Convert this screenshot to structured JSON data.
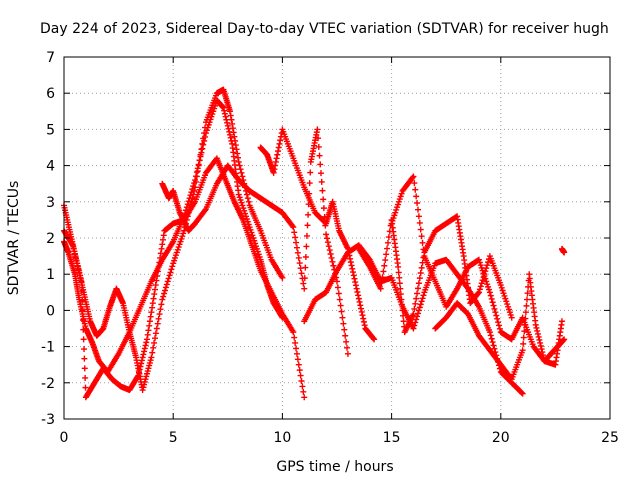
{
  "chart_data": {
    "type": "scatter",
    "title": "Day 224 of 2023, Sidereal Day-to-day VTEC variation (SDTVAR) for receiver hugh",
    "xlabel": "GPS time / hours",
    "ylabel": "SDTVAR / TECUs",
    "xlim": [
      0,
      25
    ],
    "ylim": [
      -3,
      7
    ],
    "xticks": [
      "0",
      "5",
      "10",
      "15",
      "20",
      "25"
    ],
    "yticks": [
      "-3",
      "-2",
      "-1",
      "0",
      "1",
      "2",
      "3",
      "4",
      "5",
      "6",
      "7"
    ],
    "grid": true,
    "marker": "+",
    "series": [
      {
        "name": "track-1",
        "color": "#ff0000",
        "x": [
          0.0,
          0.2,
          0.5,
          0.7,
          1.0,
          1.3,
          1.6,
          2.0,
          2.5,
          3.0,
          3.5,
          4.0,
          4.5,
          5.0,
          5.5,
          6.0,
          6.5,
          7.0,
          7.3,
          7.7,
          8.0,
          8.5,
          9.0,
          9.3,
          9.6,
          10.0
        ],
        "y": [
          1.9,
          1.6,
          1.0,
          0.3,
          -0.5,
          -0.9,
          -1.4,
          -1.7,
          -1.2,
          -0.6,
          0.1,
          0.8,
          1.4,
          1.9,
          2.6,
          3.6,
          4.9,
          5.8,
          5.6,
          4.6,
          3.2,
          2.3,
          1.4,
          0.7,
          0.2,
          -0.2
        ]
      },
      {
        "name": "track-2",
        "color": "#ff0000",
        "x": [
          0.0,
          0.3,
          0.6,
          0.9,
          1.2,
          1.5,
          1.8,
          2.1,
          2.4,
          2.7,
          3.0,
          3.3,
          3.6,
          4.0,
          4.5,
          5.0,
          5.5,
          6.0,
          6.5,
          7.0,
          7.3,
          7.6,
          8.0,
          8.5,
          9.0,
          9.5,
          10.0
        ],
        "y": [
          2.9,
          2.1,
          1.3,
          0.5,
          -0.3,
          -0.7,
          -0.5,
          0.1,
          0.6,
          0.2,
          -0.6,
          -1.3,
          -2.2,
          -1.3,
          0.3,
          1.3,
          2.2,
          3.4,
          5.2,
          6.0,
          6.1,
          5.5,
          4.1,
          2.9,
          2.2,
          1.4,
          0.9
        ]
      },
      {
        "name": "track-3",
        "color": "#ff0000",
        "x": [
          0.0,
          0.4,
          0.8,
          1.0,
          1.4,
          1.8,
          2.2,
          2.6,
          3.0,
          3.4,
          3.8,
          4.2,
          4.6,
          5.0,
          5.5,
          6.0,
          6.5,
          7.0,
          7.4,
          7.8,
          8.2,
          8.6,
          9.0,
          9.5,
          10.0,
          10.5,
          11.0
        ],
        "y": [
          2.2,
          1.8,
          0.8,
          -2.4,
          -2.0,
          -1.6,
          -1.9,
          -2.1,
          -2.2,
          -1.8,
          -0.8,
          0.7,
          2.2,
          2.4,
          2.5,
          3.0,
          3.8,
          4.2,
          3.6,
          3.0,
          2.5,
          1.8,
          1.1,
          0.5,
          -0.1,
          -0.6,
          -2.4
        ]
      },
      {
        "name": "track-4",
        "color": "#ff0000",
        "x": [
          4.5,
          4.8,
          5.0,
          5.3,
          5.7,
          6.0,
          6.5,
          7.0,
          7.5,
          8.0,
          8.5,
          9.0,
          9.5,
          10.0,
          10.5,
          11.0,
          11.3,
          11.6,
          12.0,
          12.5,
          13.0
        ],
        "y": [
          3.5,
          3.1,
          3.3,
          2.7,
          2.2,
          2.4,
          2.8,
          3.5,
          4.0,
          3.6,
          3.3,
          3.1,
          2.9,
          2.7,
          2.3,
          0.6,
          4.1,
          5.0,
          2.1,
          0.8,
          -1.2
        ]
      },
      {
        "name": "track-5",
        "color": "#ff0000",
        "x": [
          9.0,
          9.3,
          9.6,
          10.0,
          10.5,
          11.0,
          11.5,
          12.0,
          12.3,
          12.6,
          13.0,
          13.4,
          13.8,
          14.2
        ],
        "y": [
          4.5,
          4.3,
          3.8,
          5.0,
          4.2,
          3.4,
          2.7,
          2.4,
          3.0,
          2.2,
          1.7,
          0.6,
          -0.5,
          -0.8
        ]
      },
      {
        "name": "track-6",
        "color": "#ff0000",
        "x": [
          11.0,
          11.5,
          12.0,
          12.5,
          13.0,
          13.5,
          14.0,
          14.5,
          15.0,
          15.5,
          16.0,
          16.5,
          17.0,
          17.5,
          18.0,
          18.5,
          19.0,
          19.5,
          20.0,
          20.5,
          21.0
        ],
        "y": [
          -0.3,
          0.3,
          0.5,
          1.1,
          1.6,
          1.8,
          1.4,
          0.8,
          0.9,
          0.1,
          -0.5,
          0.5,
          1.3,
          1.4,
          1.0,
          0.6,
          0.1,
          -0.6,
          -1.7,
          -2.0,
          -2.3
        ]
      },
      {
        "name": "track-7",
        "color": "#ff0000",
        "x": [
          13.5,
          14.0,
          14.5,
          15.0,
          15.3,
          15.6,
          16.0,
          16.5,
          17.0,
          17.5,
          18.0,
          18.3,
          18.6,
          19.0,
          19.5,
          20.0,
          20.5
        ],
        "y": [
          1.7,
          1.2,
          0.6,
          2.5,
          1.2,
          -0.6,
          -0.1,
          1.6,
          2.2,
          2.4,
          2.6,
          1.5,
          0.2,
          0.5,
          1.5,
          0.7,
          -0.2
        ]
      },
      {
        "name": "track-8",
        "color": "#ff0000",
        "x": [
          15.0,
          15.5,
          16.0,
          16.5,
          17.0,
          17.5,
          18.0,
          18.5,
          19.0,
          19.5,
          20.0,
          20.5,
          21.0,
          21.5,
          22.0,
          22.5,
          22.8
        ],
        "y": [
          2.4,
          3.3,
          3.7,
          1.5,
          0.8,
          0.1,
          0.6,
          1.2,
          1.4,
          0.5,
          -0.6,
          -0.8,
          -0.2,
          -1.0,
          -1.4,
          -1.5,
          -0.3
        ]
      },
      {
        "name": "track-9",
        "color": "#ff0000",
        "x": [
          17.0,
          17.5,
          18.0,
          18.5,
          19.0,
          19.5,
          20.0,
          20.5,
          21.0,
          21.3,
          21.6,
          22.0,
          22.3,
          22.6,
          22.9
        ],
        "y": [
          -0.5,
          -0.2,
          0.2,
          -0.1,
          -0.7,
          -1.1,
          -1.5,
          -1.9,
          -1.1,
          1.0,
          -0.4,
          -1.4,
          -1.2,
          -1.0,
          -0.8
        ]
      },
      {
        "name": "track-10",
        "color": "#ff0000",
        "x": [
          22.8,
          22.9
        ],
        "y": [
          1.7,
          1.6
        ]
      }
    ]
  }
}
